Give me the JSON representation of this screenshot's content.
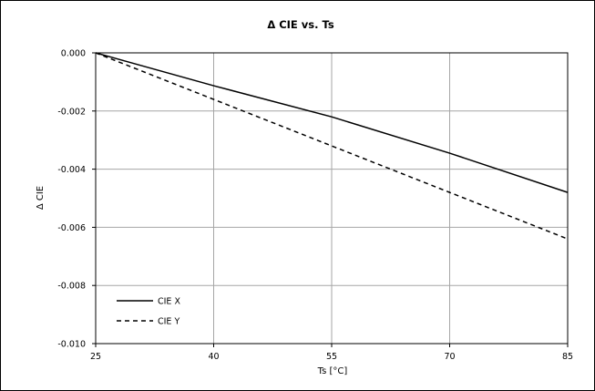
{
  "chart_data": {
    "type": "line",
    "title": "Δ CIE vs. Ts",
    "xlabel": "Ts [°C]",
    "ylabel": "Δ CIE",
    "xlim": [
      25,
      85
    ],
    "ylim": [
      -0.01,
      0.0
    ],
    "xticks": [
      25,
      40,
      55,
      70,
      85
    ],
    "xtick_labels": [
      "25",
      "40",
      "55",
      "70",
      "85"
    ],
    "yticks": [
      0.0,
      -0.002,
      -0.004,
      -0.006,
      -0.008,
      -0.01
    ],
    "ytick_labels": [
      "0.000",
      "-0.002",
      "-0.004",
      "-0.006",
      "-0.008",
      "-0.010"
    ],
    "grid": true,
    "legend_position": "bottom-left",
    "series": [
      {
        "name": "CIE X",
        "line_style": "solid",
        "color": "#000000",
        "x": [
          25,
          40,
          55,
          70,
          85
        ],
        "y": [
          0.0,
          -0.00113,
          -0.0022,
          -0.00345,
          -0.0048
        ]
      },
      {
        "name": "CIE Y",
        "line_style": "dashed",
        "color": "#000000",
        "x": [
          25,
          40,
          55,
          70,
          85
        ],
        "y": [
          0.0,
          -0.0016,
          -0.0032,
          -0.0048,
          -0.0064
        ]
      }
    ]
  }
}
